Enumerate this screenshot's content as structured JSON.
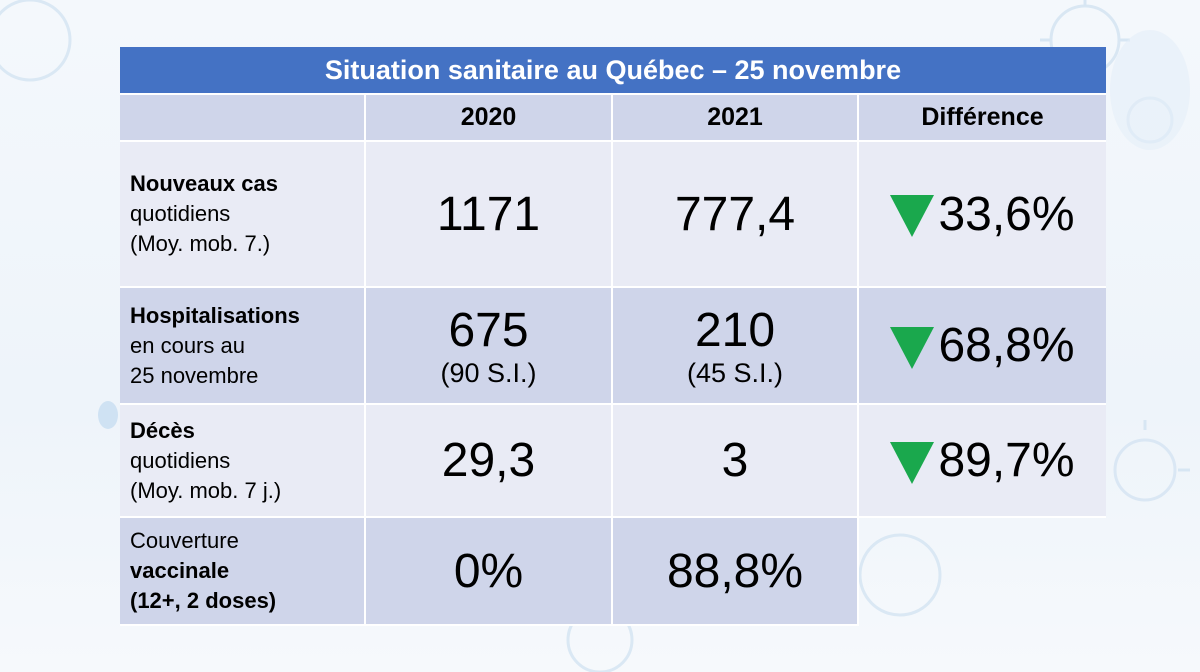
{
  "title": "Situation sanitaire au Québec – 25 novembre",
  "headers": [
    "2020",
    "2021",
    "Différence"
  ],
  "rows": [
    {
      "label_lines": [
        "Nouveaux cas",
        "quotidiens",
        "(Moy. mob. 7.)"
      ],
      "v2020": "1171",
      "v2021": "777,4",
      "diff": "33,6%"
    },
    {
      "label_lines": [
        "Hospitalisations",
        "en cours au",
        "25 novembre"
      ],
      "v2020": "675",
      "v2020_sub": "(90 S.I.)",
      "v2021": "210",
      "v2021_sub": "(45 S.I.)",
      "diff": "68,8%"
    },
    {
      "label_lines": [
        "Décès",
        "quotidiens",
        "(Moy. mob. 7 j.)"
      ],
      "v2020": "29,3",
      "v2021": "3",
      "diff": "89,7%"
    },
    {
      "label_lines": [
        "Couverture",
        "vaccinale",
        "(12+, 2 doses)"
      ],
      "v2020": "0%",
      "v2021": "88,8%"
    }
  ],
  "colors": {
    "header_blue": "#4472c4",
    "row_light": "#e9ebf5",
    "row_dark": "#cfd5ea",
    "down_arrow": "#1aa84d"
  }
}
